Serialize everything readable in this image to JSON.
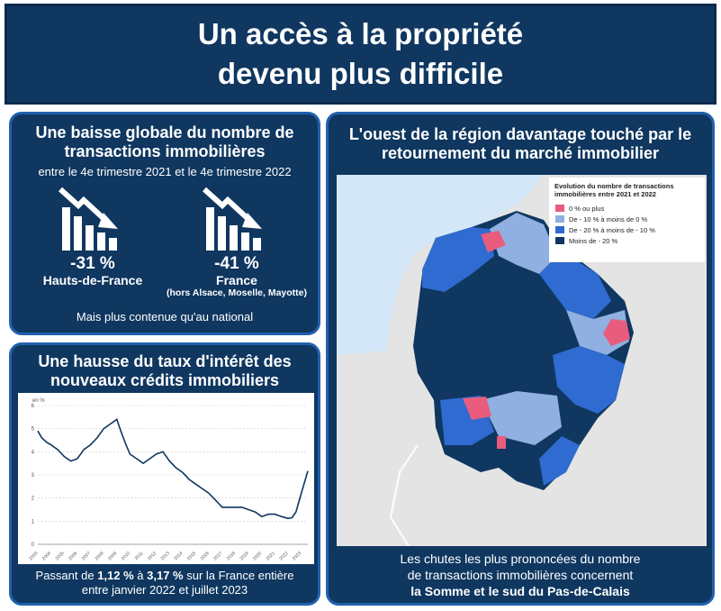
{
  "header": {
    "title_line1": "Un accès à la propriété",
    "title_line2": "devenu plus difficile"
  },
  "transactions": {
    "title_line1": "Une baisse globale du nombre de",
    "title_line2": "transactions immobilières",
    "period": "entre le 4e trimestre 2021 et le 4e trimestre 2022",
    "kpis": [
      {
        "value": "-31 %",
        "label": "Hauts-de-France",
        "note": ""
      },
      {
        "value": "-41 %",
        "label": "France",
        "note": "(hors Alsace, Moselle, Mayotte)"
      }
    ],
    "icon": "declining-bar-chart-icon",
    "footer": "Mais plus contenue qu'au national"
  },
  "rates": {
    "title_line1": "Une hausse du taux d'intérêt des",
    "title_line2": "nouveaux crédits immobiliers",
    "caption_parts": [
      "Passant de ",
      "1,12 %",
      " à ",
      "3,17 %",
      " sur la France entière"
    ],
    "caption_line2": "entre janvier 2022 et juillet 2023"
  },
  "chart_data": {
    "type": "line",
    "title": "",
    "ylabel": "en %",
    "ylim": [
      0,
      6
    ],
    "yticks": [
      "0",
      "1",
      "2",
      "3",
      "4",
      "5",
      "6"
    ],
    "xlabels": [
      "2003",
      "2004",
      "2005",
      "2006",
      "2007",
      "2008",
      "2009",
      "2010",
      "2011",
      "2012",
      "2013",
      "2014",
      "2015",
      "2016",
      "2017",
      "2018",
      "2019",
      "2020",
      "2021",
      "2022",
      "2023"
    ],
    "x": [
      2003.0,
      2003.3,
      2003.7,
      2004.0,
      2004.5,
      2005.0,
      2005.5,
      2006.0,
      2006.5,
      2007.0,
      2007.5,
      2008.0,
      2008.5,
      2009.0,
      2009.3,
      2009.7,
      2010.0,
      2010.5,
      2011.0,
      2011.5,
      2012.0,
      2012.5,
      2013.0,
      2013.5,
      2014.0,
      2014.5,
      2015.0,
      2015.5,
      2016.0,
      2016.5,
      2017.0,
      2017.5,
      2018.0,
      2018.5,
      2019.0,
      2019.5,
      2020.0,
      2020.5,
      2021.0,
      2021.5,
      2022.0,
      2022.3,
      2022.6,
      2023.0,
      2023.5
    ],
    "y": [
      4.9,
      4.6,
      4.4,
      4.3,
      4.1,
      3.8,
      3.6,
      3.7,
      4.1,
      4.3,
      4.6,
      5.0,
      5.2,
      5.4,
      4.9,
      4.3,
      3.9,
      3.7,
      3.5,
      3.7,
      3.9,
      4.0,
      3.6,
      3.3,
      3.1,
      2.8,
      2.6,
      2.4,
      2.2,
      1.9,
      1.6,
      1.6,
      1.6,
      1.6,
      1.5,
      1.4,
      1.2,
      1.3,
      1.3,
      1.2,
      1.12,
      1.15,
      1.4,
      2.2,
      3.17
    ],
    "line_color": "#0f3760"
  },
  "map": {
    "title_line1": "L'ouest de la région davantage touché par le",
    "title_line2": "retournement du marché immobilier",
    "legend_title_line1": "Evolution du nombre de transactions",
    "legend_title_line2": "immobilières entre 2021 et 2022",
    "legend": [
      {
        "label": "0 % ou plus",
        "color": "#e95c7d"
      },
      {
        "label": "De - 10 % à  moins de 0 %",
        "color": "#8fb0e0"
      },
      {
        "label": "De - 20 % à moins de - 10 %",
        "color": "#2f6bd0"
      },
      {
        "label": "Moins de - 20 %",
        "color": "#0f3760"
      }
    ],
    "caption_line1": "Les chutes les plus prononcées du nombre",
    "caption_line2": "de transactions immobilières concernent",
    "caption_line3": "la Somme et le sud du Pas-de-Calais"
  }
}
